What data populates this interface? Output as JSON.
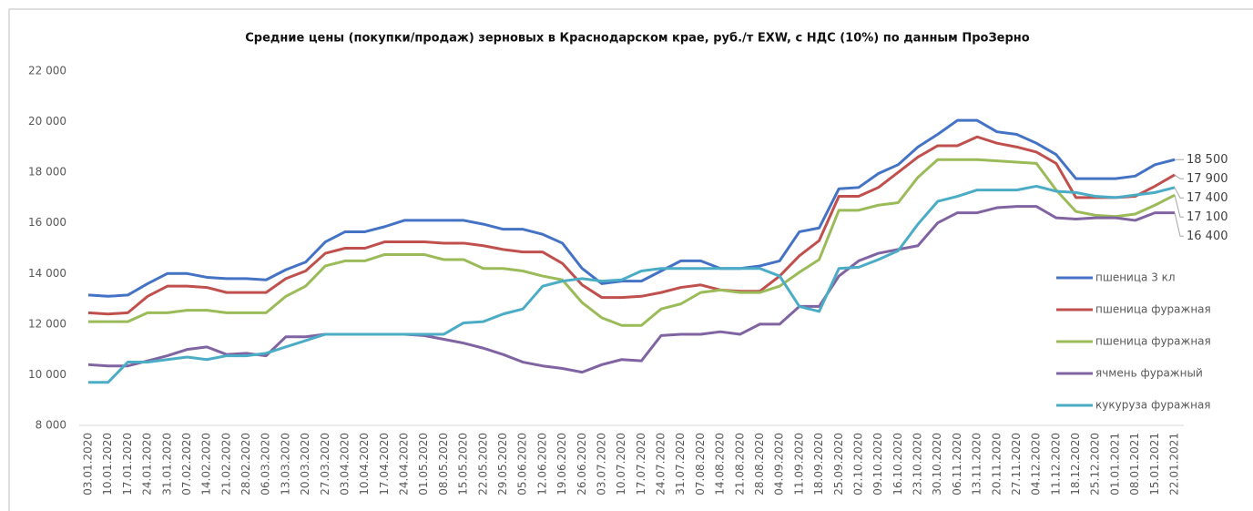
{
  "chart_data": {
    "type": "line",
    "title": "Средние цены (покупки/продаж) зерновых в Краснодарском крае, руб./т EXW, с НДС (10%) по данным ПроЗерно",
    "categories": [
      "03.01.2020",
      "10.01.2020",
      "17.01.2020",
      "24.01.2020",
      "31.01.2020",
      "07.02.2020",
      "14.02.2020",
      "21.02.2020",
      "28.02.2020",
      "06.03.2020",
      "13.03.2020",
      "20.03.2020",
      "27.03.2020",
      "03.04.2020",
      "10.04.2020",
      "17.04.2020",
      "24.04.2020",
      "01.05.2020",
      "08.05.2020",
      "15.05.2020",
      "22.05.2020",
      "29.05.2020",
      "05.06.2020",
      "12.06.2020",
      "19.06.2020",
      "26.06.2020",
      "03.07.2020",
      "10.07.2020",
      "17.07.2020",
      "24.07.2020",
      "31.07.2020",
      "07.08.2020",
      "14.08.2020",
      "21.08.2020",
      "28.08.2020",
      "04.09.2020",
      "11.09.2020",
      "18.09.2020",
      "25.09.2020",
      "02.10.2020",
      "09.10.2020",
      "16.10.2020",
      "23.10.2020",
      "30.10.2020",
      "06.11.2020",
      "13.11.2020",
      "20.11.2020",
      "27.11.2020",
      "04.12.2020",
      "11.12.2020",
      "18.12.2020",
      "25.12.2020",
      "01.01.2021",
      "08.01.2021",
      "15.01.2021",
      "22.01.2021"
    ],
    "series": [
      {
        "name": "пшеница 3 кл",
        "color": "#4472c4",
        "values": [
          13150,
          13100,
          13150,
          13600,
          14000,
          14000,
          13850,
          13800,
          13800,
          13750,
          14150,
          14450,
          15250,
          15650,
          15650,
          15850,
          16100,
          16100,
          16100,
          16100,
          15950,
          15750,
          15750,
          15550,
          15200,
          14200,
          13600,
          13700,
          13700,
          14100,
          14500,
          14500,
          14200,
          14200,
          14300,
          14500,
          15650,
          15800,
          17350,
          17400,
          17950,
          18300,
          19000,
          19500,
          20050,
          20050,
          19600,
          19500,
          19150,
          18700,
          17750,
          17750,
          17750,
          17850,
          18300,
          18500
        ],
        "value_labels": [
          null,
          null,
          null,
          null,
          null,
          null,
          null,
          null,
          null,
          null,
          null,
          null,
          null,
          null,
          null,
          null,
          null,
          null,
          null,
          null,
          null,
          null,
          null,
          null,
          null,
          null,
          null,
          null,
          null,
          null,
          null,
          null,
          null,
          null,
          null,
          null,
          null,
          null,
          null,
          null,
          null,
          null,
          null,
          null,
          null,
          null,
          null,
          null,
          null,
          null,
          null,
          null,
          null,
          null,
          null,
          "18 500"
        ]
      },
      {
        "name": "пшеница фуражная",
        "color": "#c0504d",
        "values": [
          12450,
          12400,
          12450,
          13100,
          13500,
          13500,
          13450,
          13250,
          13250,
          13250,
          13800,
          14100,
          14800,
          15000,
          15000,
          15250,
          15250,
          15250,
          15200,
          15200,
          15100,
          14950,
          14850,
          14850,
          14400,
          13550,
          13050,
          13050,
          13100,
          13250,
          13450,
          13550,
          13350,
          13300,
          13300,
          13900,
          14700,
          15300,
          17050,
          17050,
          17400,
          18000,
          18600,
          19050,
          19050,
          19400,
          19150,
          19000,
          18800,
          18350,
          17000,
          17000,
          17000,
          17050,
          17450,
          17900
        ],
        "value_labels": [
          null,
          null,
          null,
          null,
          null,
          null,
          null,
          null,
          null,
          null,
          null,
          null,
          null,
          null,
          null,
          null,
          null,
          null,
          null,
          null,
          null,
          null,
          null,
          null,
          null,
          null,
          null,
          null,
          null,
          null,
          null,
          null,
          null,
          null,
          null,
          null,
          null,
          null,
          null,
          null,
          null,
          null,
          null,
          null,
          null,
          null,
          null,
          null,
          null,
          null,
          null,
          null,
          null,
          null,
          null,
          "17 900"
        ]
      },
      {
        "name": "пшеница фуражная",
        "color": "#9bbb59",
        "values": [
          12100,
          12100,
          12100,
          12450,
          12450,
          12550,
          12550,
          12450,
          12450,
          12450,
          13100,
          13500,
          14300,
          14500,
          14500,
          14750,
          14750,
          14750,
          14550,
          14550,
          14200,
          14200,
          14100,
          13900,
          13750,
          12850,
          12250,
          11950,
          11950,
          12600,
          12800,
          13250,
          13350,
          13250,
          13250,
          13500,
          14050,
          14550,
          16500,
          16500,
          16700,
          16800,
          17800,
          18500,
          18500,
          18500,
          18450,
          18400,
          18350,
          17300,
          16450,
          16300,
          16250,
          16350,
          16700,
          17100
        ],
        "value_labels": [
          null,
          null,
          null,
          null,
          null,
          null,
          null,
          null,
          null,
          null,
          null,
          null,
          null,
          null,
          null,
          null,
          null,
          null,
          null,
          null,
          null,
          null,
          null,
          null,
          null,
          null,
          null,
          null,
          null,
          null,
          null,
          null,
          null,
          null,
          null,
          null,
          null,
          null,
          null,
          null,
          null,
          null,
          null,
          null,
          null,
          null,
          null,
          null,
          null,
          null,
          null,
          null,
          null,
          null,
          null,
          "17 100"
        ]
      },
      {
        "name": "ячмень фуражный",
        "color": "#8064a2",
        "values": [
          10400,
          10350,
          10350,
          10550,
          10750,
          11000,
          11100,
          10800,
          10850,
          10750,
          11500,
          11500,
          11600,
          11600,
          11600,
          11600,
          11600,
          11550,
          11400,
          11250,
          11050,
          10800,
          10500,
          10350,
          10250,
          10100,
          10400,
          10600,
          10550,
          11550,
          11600,
          11600,
          11700,
          11600,
          12000,
          12000,
          12700,
          12700,
          13900,
          14500,
          14800,
          14950,
          15100,
          16000,
          16400,
          16400,
          16600,
          16650,
          16650,
          16200,
          16150,
          16200,
          16200,
          16100,
          16400,
          16400
        ],
        "value_labels": [
          null,
          null,
          null,
          null,
          null,
          null,
          null,
          null,
          null,
          null,
          null,
          null,
          null,
          null,
          null,
          null,
          null,
          null,
          null,
          null,
          null,
          null,
          null,
          null,
          null,
          null,
          null,
          null,
          null,
          null,
          null,
          null,
          null,
          null,
          null,
          null,
          null,
          null,
          null,
          null,
          null,
          null,
          null,
          null,
          null,
          null,
          null,
          null,
          null,
          null,
          null,
          null,
          null,
          null,
          null,
          "16 400"
        ]
      },
      {
        "name": "кукуруза фуражная",
        "color": "#4bacc6",
        "values": [
          9700,
          9700,
          10500,
          10500,
          10600,
          10700,
          10600,
          10750,
          10750,
          10850,
          11100,
          11350,
          11600,
          11600,
          11600,
          11600,
          11600,
          11600,
          11600,
          12050,
          12100,
          12400,
          12600,
          13500,
          13700,
          13800,
          13700,
          13750,
          14100,
          14200,
          14200,
          14200,
          14200,
          14200,
          14200,
          13900,
          12700,
          12500,
          14200,
          14250,
          14550,
          14900,
          15950,
          16850,
          17050,
          17300,
          17300,
          17300,
          17450,
          17250,
          17200,
          17050,
          17000,
          17100,
          17200,
          17400
        ],
        "value_labels": [
          null,
          null,
          null,
          null,
          null,
          null,
          null,
          null,
          null,
          null,
          null,
          null,
          null,
          null,
          null,
          null,
          null,
          null,
          null,
          null,
          null,
          null,
          null,
          null,
          null,
          null,
          null,
          null,
          null,
          null,
          null,
          null,
          null,
          null,
          null,
          null,
          null,
          null,
          null,
          null,
          null,
          null,
          null,
          null,
          null,
          null,
          null,
          null,
          null,
          null,
          null,
          null,
          null,
          null,
          null,
          "17 400"
        ]
      }
    ],
    "ylim": [
      8000,
      22000
    ],
    "yticks": [
      {
        "value": 8000,
        "label": "8 000"
      },
      {
        "value": 10000,
        "label": "10 000"
      },
      {
        "value": 12000,
        "label": "12 000"
      },
      {
        "value": 14000,
        "label": "14 000"
      },
      {
        "value": 16000,
        "label": "16 000"
      },
      {
        "value": 18000,
        "label": "18 000"
      },
      {
        "value": 20000,
        "label": "20 000"
      },
      {
        "value": 22000,
        "label": "22 000"
      }
    ],
    "grid": false,
    "legend": "right"
  }
}
